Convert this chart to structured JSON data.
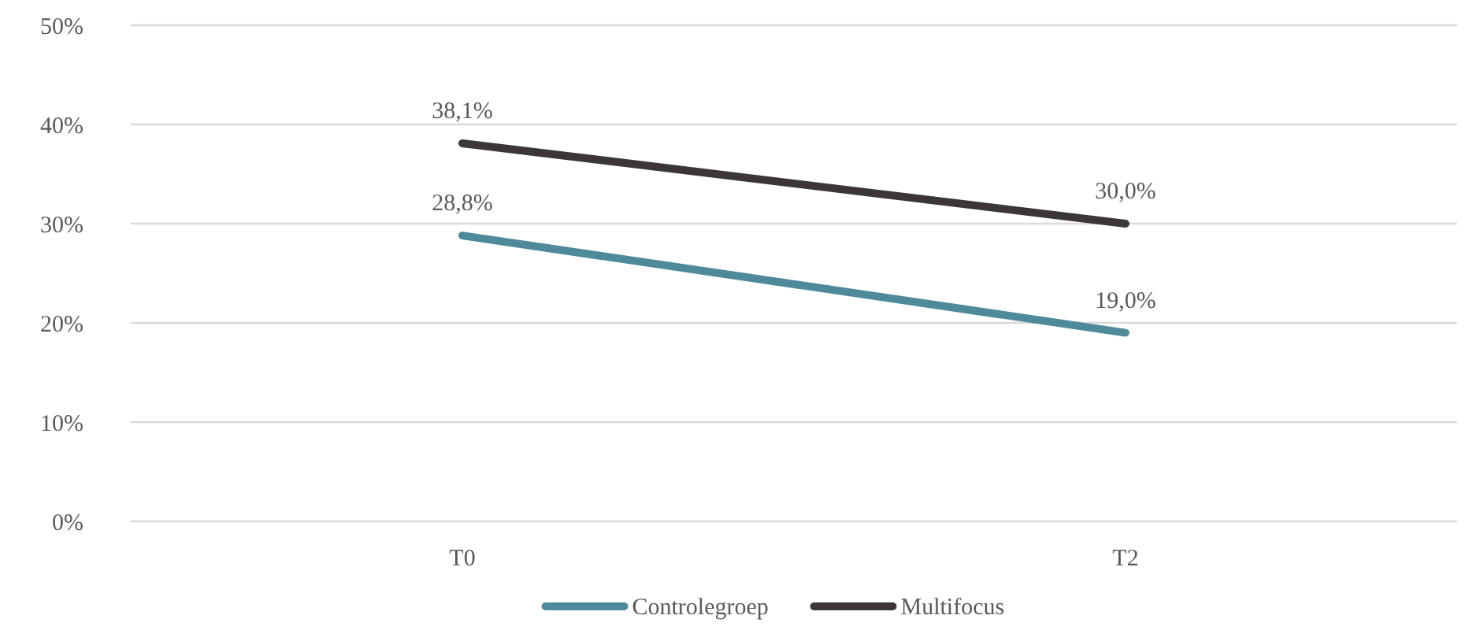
{
  "chart_data": {
    "type": "line",
    "categories": [
      "T0",
      "T2"
    ],
    "series": [
      {
        "name": "Controlegroep",
        "color": "#4e8a99",
        "values": [
          28.8,
          19.0
        ],
        "value_labels": [
          "28,8%",
          "19,0%"
        ]
      },
      {
        "name": "Multifocus",
        "color": "#3d3638",
        "values": [
          38.1,
          30.0
        ],
        "value_labels": [
          "38,1%",
          "30,0%"
        ]
      }
    ],
    "ylim": [
      0,
      50
    ],
    "yticks": [
      {
        "value": 0,
        "label": "0%"
      },
      {
        "value": 10,
        "label": "10%"
      },
      {
        "value": 20,
        "label": "20%"
      },
      {
        "value": 30,
        "label": "30%"
      },
      {
        "value": 40,
        "label": "40%"
      },
      {
        "value": 50,
        "label": "50%"
      }
    ],
    "grid": "y",
    "legend": "bottom",
    "marker": "none",
    "line_style": "solid"
  }
}
